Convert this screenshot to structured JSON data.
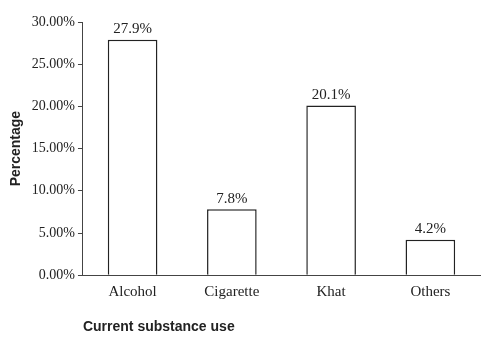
{
  "chart_data": {
    "type": "bar",
    "x_label": "Current substance use",
    "y_label": "Percentage",
    "categories": [
      "Alcohol",
      "Cigarette",
      "Khat",
      "Others"
    ],
    "values": [
      27.9,
      7.8,
      20.1,
      4.2
    ],
    "value_labels": [
      "27.9%",
      "7.8%",
      "20.1%",
      "4.2%"
    ],
    "data_labels": true,
    "color": "#ffffff",
    "ylim": [
      0,
      30
    ],
    "yticks": [
      {
        "value": 0,
        "label": "0.00%"
      },
      {
        "value": 5,
        "label": "5.00%"
      },
      {
        "value": 10,
        "label": "10.00%"
      },
      {
        "value": 15,
        "label": "15.00%"
      },
      {
        "value": 20,
        "label": "20.00%"
      },
      {
        "value": 25,
        "label": "25.00%"
      },
      {
        "value": 30,
        "label": "30.00%"
      }
    ],
    "grid": false
  }
}
